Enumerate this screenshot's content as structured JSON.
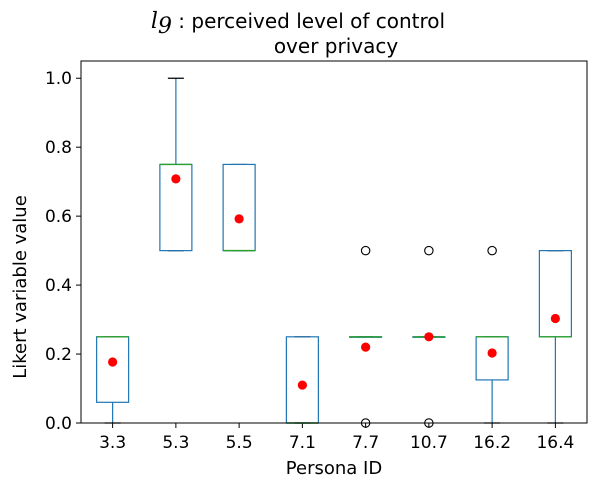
{
  "chart_data": {
    "type": "box",
    "title_symbol": "l",
    "title_subscript": "9",
    "title_line1": " : perceived level of control",
    "title_line2": "over privacy",
    "xlabel": "Persona ID",
    "ylabel": "Likert variable value",
    "ylim": [
      0,
      1.05
    ],
    "yticks": [
      0.0,
      0.2,
      0.4,
      0.6,
      0.8,
      1.0
    ],
    "ytick_labels": [
      "0.0",
      "0.2",
      "0.4",
      "0.6",
      "0.8",
      "1.0"
    ],
    "categories": [
      "3.3",
      "5.3",
      "5.5",
      "7.1",
      "7.7",
      "10.7",
      "16.2",
      "16.4"
    ],
    "boxes": [
      {
        "q1": 0.06,
        "median": 0.25,
        "q3": 0.25,
        "whisker_low": 0.0,
        "whisker_high": 0.25,
        "mean": 0.177,
        "outliers": []
      },
      {
        "q1": 0.5,
        "median": 0.75,
        "q3": 0.75,
        "whisker_low": 0.5,
        "whisker_high": 1.0,
        "mean": 0.708,
        "outliers": []
      },
      {
        "q1": 0.5,
        "median": 0.5,
        "q3": 0.75,
        "whisker_low": 0.5,
        "whisker_high": 0.75,
        "mean": 0.592,
        "outliers": []
      },
      {
        "q1": 0.0,
        "median": 0.0,
        "q3": 0.25,
        "whisker_low": 0.0,
        "whisker_high": 0.25,
        "mean": 0.11,
        "outliers": []
      },
      {
        "q1": 0.25,
        "median": 0.25,
        "q3": 0.25,
        "whisker_low": 0.25,
        "whisker_high": 0.25,
        "mean": 0.22,
        "outliers": [
          0.0,
          0.5
        ]
      },
      {
        "q1": 0.25,
        "median": 0.25,
        "q3": 0.25,
        "whisker_low": 0.25,
        "whisker_high": 0.25,
        "mean": 0.25,
        "outliers": [
          0.0,
          0.5
        ]
      },
      {
        "q1": 0.125,
        "median": 0.25,
        "q3": 0.25,
        "whisker_low": 0.0,
        "whisker_high": 0.25,
        "mean": 0.203,
        "outliers": [
          0.5
        ]
      },
      {
        "q1": 0.25,
        "median": 0.25,
        "q3": 0.5,
        "whisker_low": 0.0,
        "whisker_high": 0.5,
        "mean": 0.303,
        "outliers": []
      }
    ],
    "colors": {
      "box": "#1f77b4",
      "median": "#2ca02c",
      "whisker_cap": "#000000",
      "mean": "#ff0000",
      "outlier": "#000000"
    },
    "grid": false,
    "legend": "none"
  }
}
